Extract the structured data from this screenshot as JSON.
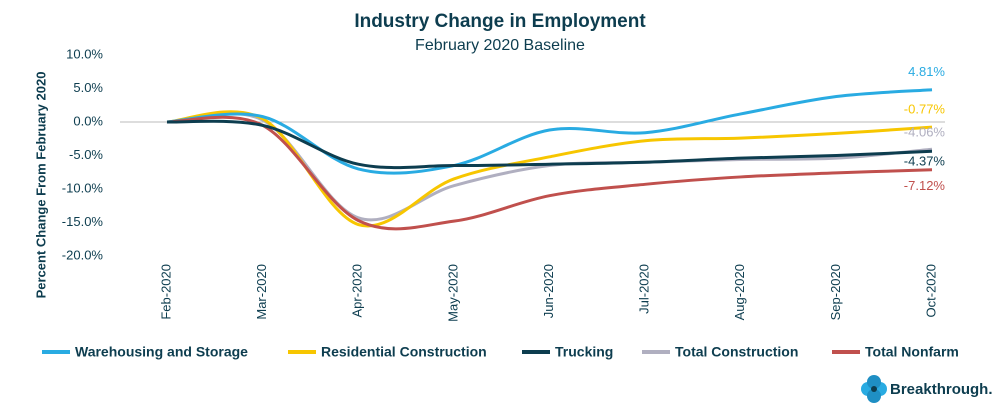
{
  "chart_data": {
    "type": "line",
    "title": "Industry Change in Employment",
    "subtitle": "February 2020 Baseline",
    "y_label": "Percent Change From February 2020",
    "categories": [
      "Feb-2020",
      "Mar-2020",
      "Apr-2020",
      "May-2020",
      "Jun-2020",
      "Jul-2020",
      "Aug-2020",
      "Sep-2020",
      "Oct-2020"
    ],
    "series": [
      {
        "name": "Warehousing and Storage",
        "color": "#29abe2",
        "values": [
          0,
          0.8,
          -7,
          -6.5,
          -1.2,
          -1.6,
          1.2,
          3.8,
          4.81
        ],
        "value_labels": [
          null,
          null,
          null,
          null,
          null,
          null,
          null,
          null,
          "4.81%"
        ]
      },
      {
        "name": "Residential Construction",
        "color": "#f7c600",
        "values": [
          0,
          0.5,
          -15.3,
          -8.5,
          -5.2,
          -2.8,
          -2.4,
          -1.7,
          -0.77
        ],
        "value_labels": [
          null,
          null,
          null,
          null,
          null,
          null,
          null,
          null,
          "-0.77%"
        ]
      },
      {
        "name": "Trucking",
        "color": "#0d3d4f",
        "values": [
          0,
          -0.5,
          -6.3,
          -6.5,
          -6.3,
          -6.0,
          -5.4,
          -5.0,
          -4.37
        ],
        "value_labels": [
          null,
          null,
          null,
          null,
          null,
          null,
          null,
          null,
          "-4.37%"
        ]
      },
      {
        "name": "Total Construction",
        "color": "#b0afc0",
        "values": [
          0,
          0.3,
          -14.3,
          -9.5,
          -6.5,
          -6.0,
          -5.6,
          -5.4,
          -4.06
        ],
        "value_labels": [
          null,
          null,
          null,
          null,
          null,
          null,
          null,
          null,
          "-4.06%"
        ]
      },
      {
        "name": "Total Nonfarm",
        "color": "#c0504d",
        "values": [
          0,
          -0.5,
          -14.7,
          -14.8,
          -11,
          -9.3,
          -8.2,
          -7.6,
          -7.12
        ],
        "value_labels": [
          null,
          null,
          null,
          null,
          null,
          null,
          null,
          null,
          "-7.12%"
        ]
      }
    ],
    "ylim": [
      -20,
      10
    ],
    "yticks": [
      {
        "value": 10,
        "label": "10.0%"
      },
      {
        "value": 5,
        "label": "5.0%"
      },
      {
        "value": 0,
        "label": "0.0%"
      },
      {
        "value": -5,
        "label": "-5.0%"
      },
      {
        "value": -10,
        "label": "-10.0%"
      },
      {
        "value": -15,
        "label": "-15.0%"
      },
      {
        "value": -20,
        "label": "-20.0%"
      }
    ],
    "grid": false,
    "legend": "bottom"
  },
  "brand": "Breakthrough."
}
